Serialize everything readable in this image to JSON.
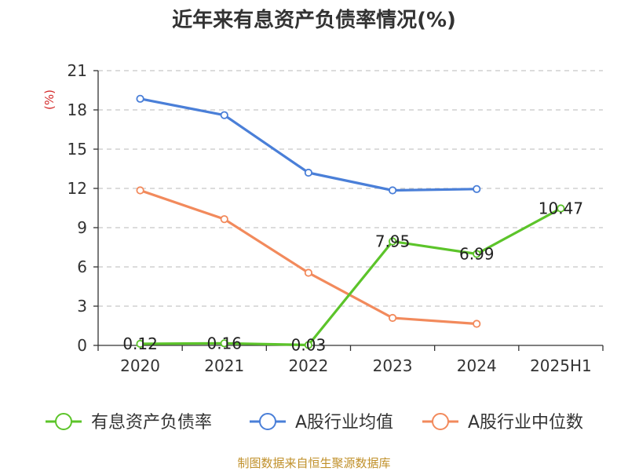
{
  "chart_data": {
    "type": "line",
    "title": "近年来有息资产负债率情况(%)",
    "ylabel": "(%)",
    "categories": [
      "2020",
      "2021",
      "2022",
      "2023",
      "2024",
      "2025H1"
    ],
    "yticks": [
      "0",
      "3",
      "6",
      "9",
      "12",
      "15",
      "18",
      "21"
    ],
    "ylim": [
      0,
      21
    ],
    "grid": true,
    "legend": "bottom",
    "series": [
      {
        "name": "有息资产负债率",
        "color": "#5cc42a",
        "values": [
          0.12,
          0.16,
          0.03,
          7.95,
          6.99,
          10.47
        ],
        "labels": [
          "0.12",
          "0.16",
          "0.03",
          "7.95",
          "6.99",
          "10.47"
        ]
      },
      {
        "name": "A股行业均值",
        "color": "#4a7fd8",
        "values": [
          18.85,
          17.6,
          13.2,
          11.85,
          11.95,
          null
        ],
        "labels": []
      },
      {
        "name": "A股行业中位数",
        "color": "#f28a5c",
        "values": [
          11.85,
          9.65,
          5.55,
          2.1,
          1.65,
          null
        ],
        "labels": []
      }
    ],
    "source": "制图数据来自恒生聚源数据库"
  }
}
